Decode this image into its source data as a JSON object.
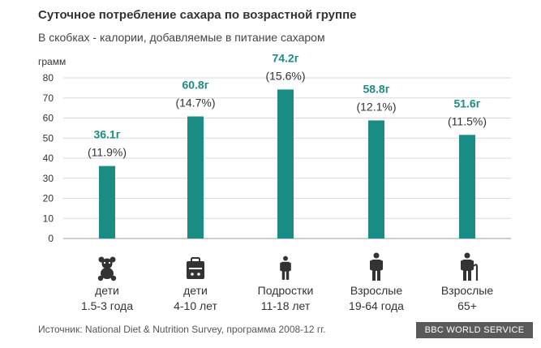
{
  "header": {
    "title": "Суточное потребление сахара по возрастной группе",
    "subtitle": "В скобках - калории, добавляемые в питание сахаром"
  },
  "footer": {
    "source": "Источник: National Diet & Nutrition Survey, программа 2008-12 гг.",
    "badge": "BBC WORLD SERVICE"
  },
  "colors": {
    "bar": "#1a8c84",
    "value_label": "#1d8c84",
    "grid": "#d9d9d9",
    "icon": "#333333"
  },
  "chart_data": {
    "type": "bar",
    "ylabel": "грамм",
    "ylim": [
      0,
      80
    ],
    "yticks": [
      0,
      10,
      20,
      30,
      40,
      50,
      60,
      70,
      80
    ],
    "grid": true,
    "categories": [
      {
        "line1": "дети",
        "line2": "1.5-3 года",
        "icon": "teddy-bear-icon"
      },
      {
        "line1": "дети",
        "line2": "4-10 лет",
        "icon": "lunchbox-icon"
      },
      {
        "line1": "Подростки",
        "line2": "11-18 лет",
        "icon": "teen-person-icon"
      },
      {
        "line1": "Взрослые",
        "line2": "19-64 года",
        "icon": "adult-person-icon"
      },
      {
        "line1": "Взрослые",
        "line2": "65+",
        "icon": "elderly-person-cane-icon"
      }
    ],
    "values": [
      36.1,
      60.8,
      74.2,
      58.8,
      51.6
    ],
    "value_labels": [
      "36.1г",
      "60.8г",
      "74.2г",
      "58.8г",
      "51.6г"
    ],
    "percent_labels": [
      "(11.9%)",
      "(14.7%)",
      "(15.6%)",
      "(12.1%)",
      "(11.5%)"
    ]
  }
}
